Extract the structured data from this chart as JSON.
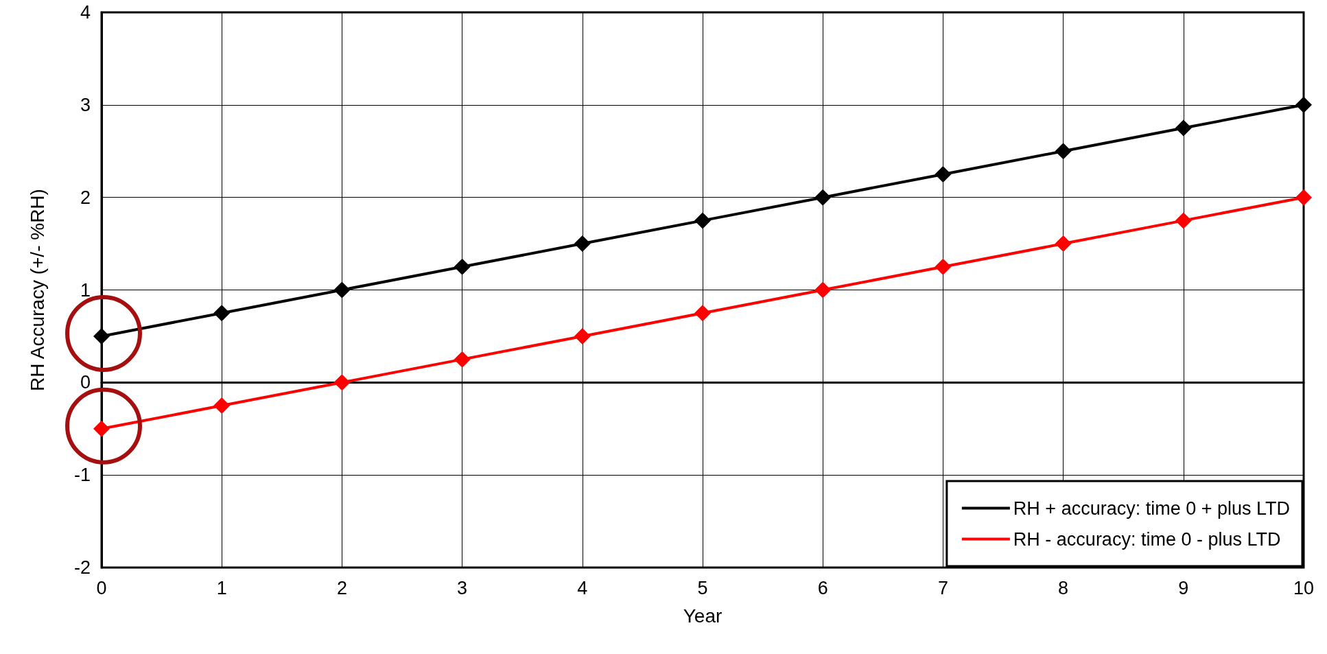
{
  "chart_data": {
    "type": "line",
    "xlabel": "Year",
    "ylabel": "RH Accuracy (+/- %RH)",
    "x": [
      0,
      1,
      2,
      3,
      4,
      5,
      6,
      7,
      8,
      9,
      10
    ],
    "series": [
      {
        "name": "RH + accuracy: time 0 + plus LTD",
        "color": "#000000",
        "values": [
          0.5,
          0.75,
          1,
          1.25,
          1.5,
          1.75,
          2,
          2.25,
          2.5,
          2.75,
          3
        ]
      },
      {
        "name": "RH - accuracy: time 0 - plus LTD",
        "color": "#ff0000",
        "values": [
          -0.5,
          -0.25,
          0,
          0.25,
          0.5,
          0.75,
          1,
          1.25,
          1.5,
          1.75,
          2
        ]
      }
    ],
    "xlim": [
      0,
      10
    ],
    "xticks": [
      0,
      1,
      2,
      3,
      4,
      5,
      6,
      7,
      8,
      9,
      10
    ],
    "ylim": [
      -2,
      4
    ],
    "yticks": [
      -2,
      -1,
      0,
      1,
      2,
      3,
      4
    ],
    "grid": true,
    "legend": "bottom right",
    "marker": "diamond",
    "line_style": "solid"
  }
}
